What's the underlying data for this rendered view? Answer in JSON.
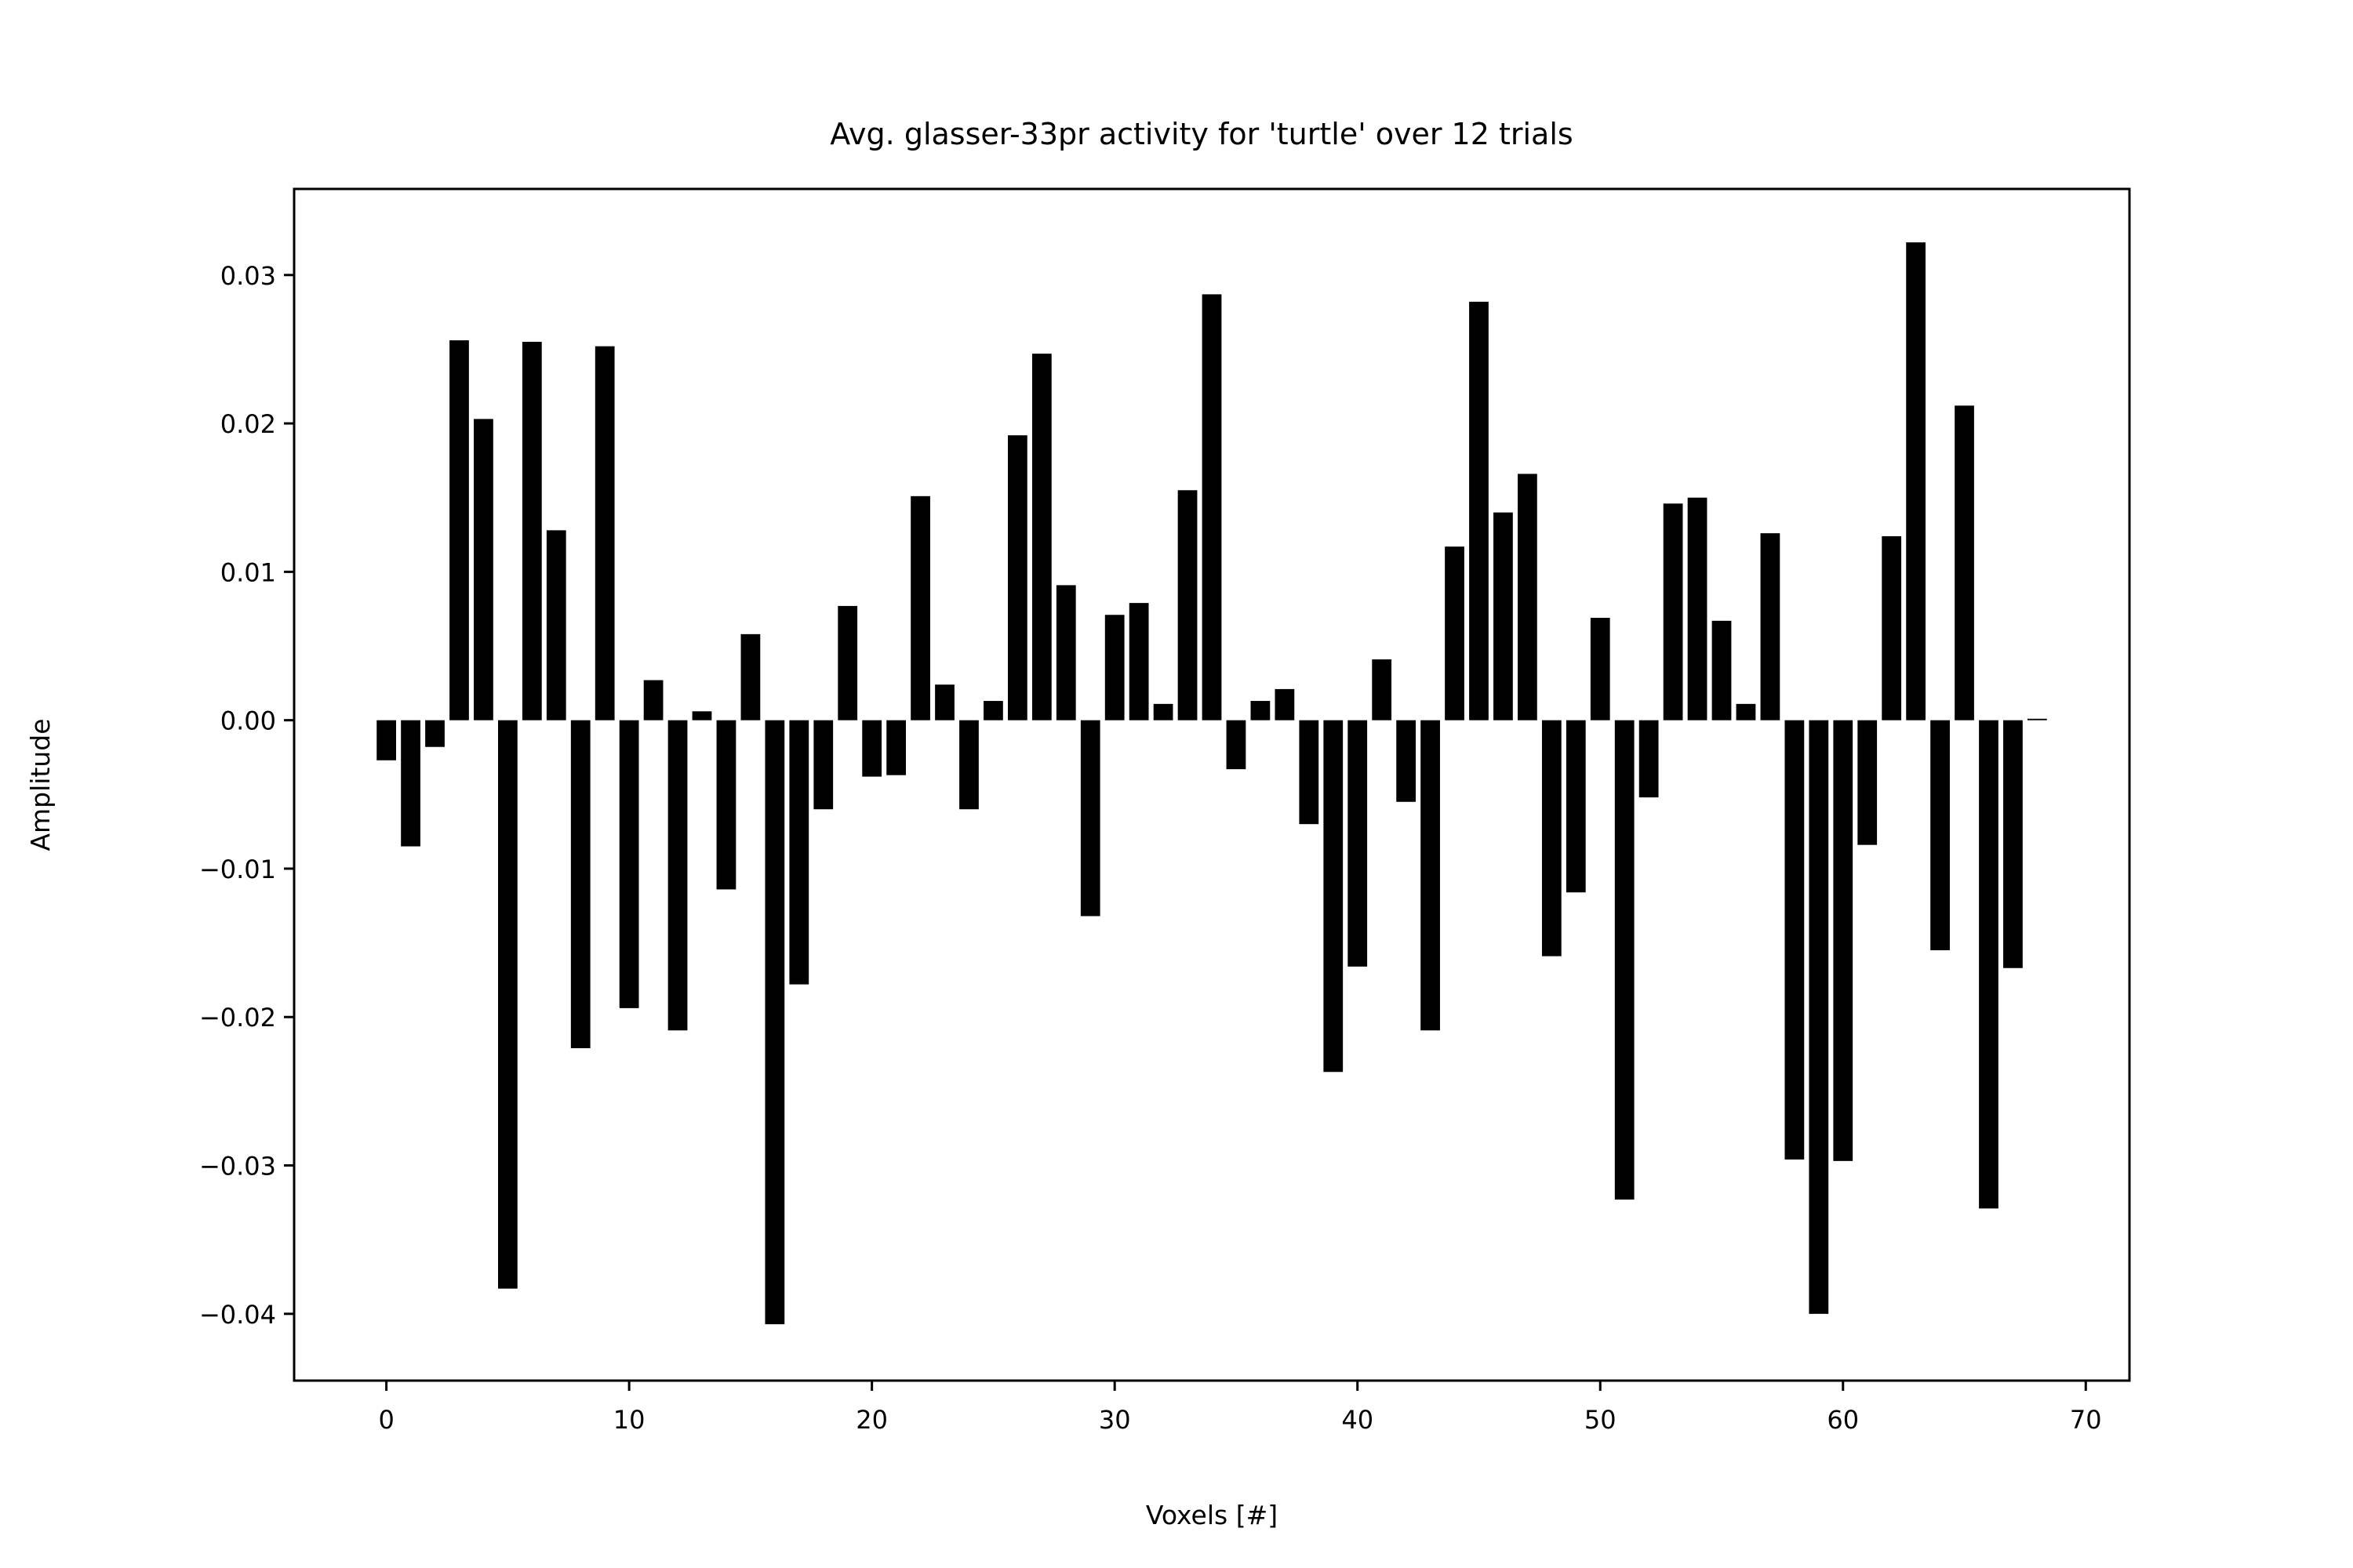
{
  "chart_data": {
    "type": "bar",
    "title": "Avg. glasser-33pr activity for 'turtle' over 12 trials",
    "xlabel": "Voxels [#]",
    "ylabel": "Amplitude",
    "xlim": [
      -3.8,
      71.8
    ],
    "ylim": [
      -0.0445,
      0.0358
    ],
    "xticks": [
      0,
      10,
      20,
      30,
      40,
      50,
      60,
      70
    ],
    "xtick_labels": [
      "0",
      "10",
      "20",
      "30",
      "40",
      "50",
      "60",
      "70"
    ],
    "yticks": [
      0.03,
      0.02,
      0.01,
      0.0,
      -0.01,
      -0.02,
      -0.03,
      -0.04
    ],
    "ytick_labels": [
      "0.03",
      "0.02",
      "0.01",
      "0.00",
      "−0.01",
      "−0.02",
      "−0.03",
      "−0.04"
    ],
    "grid": false,
    "bar_color": "#000000",
    "x": [
      0,
      1,
      2,
      3,
      4,
      5,
      6,
      7,
      8,
      9,
      10,
      11,
      12,
      13,
      14,
      15,
      16,
      17,
      18,
      19,
      20,
      21,
      22,
      23,
      24,
      25,
      26,
      27,
      28,
      29,
      30,
      31,
      32,
      33,
      34,
      35,
      36,
      37,
      38,
      39,
      40,
      41,
      42,
      43,
      44,
      45,
      46,
      47,
      48,
      49,
      50,
      51,
      52,
      53,
      54,
      55,
      56,
      57,
      58,
      59,
      60,
      61,
      62,
      63,
      64,
      65,
      66,
      67,
      68
    ],
    "values": [
      -0.0027,
      -0.0085,
      -0.0018,
      0.0256,
      0.0203,
      -0.0383,
      0.0255,
      0.0128,
      -0.0221,
      0.0252,
      -0.0194,
      0.0027,
      -0.0209,
      0.0006,
      -0.0114,
      0.0058,
      -0.0407,
      -0.0178,
      -0.006,
      0.0077,
      -0.0038,
      -0.0037,
      0.0151,
      0.0024,
      -0.006,
      0.0013,
      0.0192,
      0.0247,
      0.0091,
      -0.0132,
      0.0071,
      0.0079,
      0.0011,
      0.0155,
      0.0287,
      -0.0033,
      0.0013,
      0.0021,
      -0.007,
      -0.0237,
      -0.0166,
      0.0041,
      -0.0055,
      -0.0209,
      0.0117,
      0.0282,
      0.014,
      0.0166,
      -0.0159,
      -0.0116,
      0.0069,
      -0.0323,
      -0.0052,
      0.0146,
      0.015,
      0.0067,
      0.0011,
      0.0126,
      -0.0296,
      -0.04,
      -0.0297,
      -0.0084,
      0.0124,
      0.0322,
      -0.0155,
      0.0212,
      -0.0329,
      -0.0167,
      0.0001
    ]
  }
}
